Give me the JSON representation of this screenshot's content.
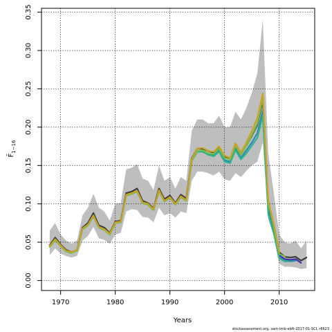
{
  "chart_data": {
    "type": "line",
    "xlabel": "Years",
    "ylabel": "F̄",
    "ylabel_sub": "1−16",
    "xlim": [
      1966.5,
      2016.5
    ],
    "ylim": [
      -0.013,
      0.355
    ],
    "xticks": [
      1970,
      1980,
      1990,
      2000,
      2010
    ],
    "yticks": [
      0.0,
      0.05,
      0.1,
      0.15,
      0.2,
      0.25,
      0.3,
      0.35
    ],
    "ytick_labels": [
      "0.00",
      "0.05",
      "0.10",
      "0.15",
      "0.20",
      "0.25",
      "0.30",
      "0.35"
    ],
    "grid": true,
    "footer": "stockassessment.org, sam-tmb-ebft-2017-01-SCI, r8623",
    "band": {
      "color": "#bebebe",
      "x": [
        1968,
        1969,
        1970,
        1971,
        1972,
        1973,
        1974,
        1975,
        1976,
        1977,
        1978,
        1979,
        1980,
        1981,
        1982,
        1983,
        1984,
        1985,
        1986,
        1987,
        1988,
        1989,
        1990,
        1991,
        1992,
        1993,
        1994,
        1995,
        1996,
        1997,
        1998,
        1999,
        2000,
        2001,
        2002,
        2003,
        2004,
        2005,
        2006,
        2007,
        2008,
        2009,
        2010,
        2011,
        2012,
        2013,
        2014,
        2015
      ],
      "upper": [
        0.065,
        0.075,
        0.06,
        0.052,
        0.048,
        0.052,
        0.085,
        0.095,
        0.113,
        0.095,
        0.09,
        0.078,
        0.1,
        0.101,
        0.145,
        0.147,
        0.152,
        0.133,
        0.13,
        0.118,
        0.15,
        0.13,
        0.135,
        0.12,
        0.135,
        0.13,
        0.195,
        0.21,
        0.21,
        0.205,
        0.205,
        0.215,
        0.2,
        0.2,
        0.22,
        0.21,
        0.225,
        0.245,
        0.27,
        0.34,
        0.165,
        0.115,
        0.06,
        0.05,
        0.048,
        0.052,
        0.042,
        0.052
      ],
      "lower": [
        0.033,
        0.042,
        0.035,
        0.032,
        0.03,
        0.032,
        0.052,
        0.058,
        0.07,
        0.055,
        0.053,
        0.048,
        0.06,
        0.062,
        0.09,
        0.093,
        0.092,
        0.083,
        0.082,
        0.076,
        0.095,
        0.085,
        0.088,
        0.082,
        0.09,
        0.088,
        0.13,
        0.142,
        0.142,
        0.14,
        0.137,
        0.142,
        0.132,
        0.13,
        0.14,
        0.135,
        0.143,
        0.15,
        0.155,
        0.18,
        0.08,
        0.058,
        0.022,
        0.018,
        0.018,
        0.017,
        0.015,
        0.016
      ]
    },
    "series": [
      {
        "color": "#3a3a3a",
        "x": [
          1968,
          1969,
          1970,
          1971,
          1972,
          1973,
          1974,
          1975,
          1976,
          1977,
          1978,
          1979,
          1980,
          1981,
          1982,
          1983,
          1984,
          1985,
          1986,
          1987,
          1988,
          1989,
          1990,
          1991,
          1992,
          1993,
          1994,
          1995,
          1996,
          1997,
          1998,
          1999,
          2000,
          2001,
          2002,
          2003,
          2004,
          2005,
          2006,
          2007,
          2008,
          2009,
          2010,
          2011,
          2012,
          2013,
          2014,
          2015
        ],
        "values": [
          0.046,
          0.056,
          0.047,
          0.04,
          0.037,
          0.04,
          0.069,
          0.075,
          0.088,
          0.072,
          0.069,
          0.062,
          0.077,
          0.078,
          0.114,
          0.116,
          0.12,
          0.104,
          0.101,
          0.094,
          0.12,
          0.106,
          0.111,
          0.101,
          0.112,
          0.107,
          0.159,
          0.172,
          0.172,
          0.169,
          0.167,
          0.174,
          0.161,
          0.159,
          0.177,
          0.165,
          0.176,
          0.189,
          0.203,
          0.235,
          0.1,
          0.072,
          0.037,
          0.031,
          0.03,
          0.031,
          0.026,
          0.03
        ]
      },
      {
        "color": "#3f2fa8",
        "x": [
          2007,
          2008,
          2009,
          2010,
          2011,
          2012,
          2013,
          2014
        ],
        "values": [
          0.232,
          0.095,
          0.069,
          0.033,
          0.028,
          0.027,
          0.028,
          0.023
        ]
      },
      {
        "color": "#2a8ab4",
        "x": [
          1968,
          1969,
          1970,
          1971,
          1972,
          1973,
          1974,
          1975,
          1976,
          1977,
          1978,
          1979,
          1980,
          1981,
          1982,
          1983,
          1984,
          1985,
          1986,
          1987,
          1988,
          1989,
          1990,
          1991,
          1992,
          1993,
          1994,
          1995,
          1996,
          1997,
          1998,
          1999,
          2000,
          2001,
          2002,
          2003,
          2004,
          2005,
          2006,
          2007,
          2008,
          2009,
          2010,
          2011,
          2012,
          2013
        ],
        "values": [
          0.044,
          0.053,
          0.045,
          0.038,
          0.036,
          0.039,
          0.067,
          0.072,
          0.084,
          0.069,
          0.066,
          0.06,
          0.075,
          0.076,
          0.111,
          0.113,
          0.116,
          0.101,
          0.099,
          0.092,
          0.117,
          0.103,
          0.108,
          0.099,
          0.109,
          0.104,
          0.156,
          0.168,
          0.168,
          0.165,
          0.163,
          0.17,
          0.157,
          0.155,
          0.172,
          0.16,
          0.17,
          0.18,
          0.192,
          0.222,
          0.09,
          0.064,
          0.03,
          0.026,
          0.025,
          0.026
        ]
      },
      {
        "color": "#2eb38a",
        "x": [
          1968,
          1969,
          1970,
          1971,
          1972,
          1973,
          1974,
          1975,
          1976,
          1977,
          1978,
          1979,
          1980,
          1981,
          1982,
          1983,
          1984,
          1985,
          1986,
          1987,
          1988,
          1989,
          1990,
          1991,
          1992,
          1993,
          1994,
          1995,
          1996,
          1997,
          1998,
          1999,
          2000,
          2001,
          2002,
          2003,
          2004,
          2005,
          2006,
          2007,
          2008,
          2009,
          2010,
          2011,
          2012
        ],
        "values": [
          0.044,
          0.053,
          0.045,
          0.038,
          0.036,
          0.039,
          0.067,
          0.072,
          0.084,
          0.069,
          0.066,
          0.06,
          0.075,
          0.076,
          0.111,
          0.113,
          0.116,
          0.101,
          0.099,
          0.092,
          0.117,
          0.103,
          0.108,
          0.099,
          0.109,
          0.104,
          0.156,
          0.168,
          0.168,
          0.164,
          0.162,
          0.168,
          0.155,
          0.153,
          0.17,
          0.158,
          0.166,
          0.176,
          0.186,
          0.215,
          0.086,
          0.062,
          0.029,
          0.025,
          0.025
        ]
      },
      {
        "color": "#78c043",
        "x": [
          1968,
          1969,
          1970,
          1971,
          1972,
          1973,
          1974,
          1975,
          1976,
          1977,
          1978,
          1979,
          1980,
          1981,
          1982,
          1983,
          1984,
          1985,
          1986,
          1987,
          1988,
          1989,
          1990,
          1991,
          1992,
          1993,
          1994,
          1995,
          1996,
          1997,
          1998,
          1999,
          2000,
          2001,
          2002,
          2003,
          2004,
          2005,
          2006,
          2007,
          2008,
          2009,
          2010,
          2011
        ],
        "values": [
          0.044,
          0.053,
          0.045,
          0.038,
          0.036,
          0.039,
          0.067,
          0.072,
          0.084,
          0.069,
          0.066,
          0.06,
          0.075,
          0.076,
          0.111,
          0.113,
          0.116,
          0.101,
          0.099,
          0.092,
          0.117,
          0.103,
          0.108,
          0.099,
          0.109,
          0.104,
          0.156,
          0.169,
          0.17,
          0.166,
          0.165,
          0.172,
          0.16,
          0.158,
          0.176,
          0.164,
          0.176,
          0.19,
          0.205,
          0.238,
          0.1,
          0.071,
          0.035,
          0.031
        ]
      },
      {
        "color": "#c9a227",
        "x": [
          1968,
          1969,
          1970,
          1971,
          1972,
          1973,
          1974,
          1975,
          1976,
          1977,
          1978,
          1979,
          1980,
          1981,
          1982,
          1983,
          1984,
          1985,
          1986,
          1987,
          1988,
          1989,
          1990,
          1991,
          1992,
          1993,
          1994,
          1995,
          1996,
          1997,
          1998,
          1999,
          2000,
          2001,
          2002,
          2003,
          2004,
          2005,
          2006,
          2007,
          2008,
          2009,
          2010
        ],
        "values": [
          0.045,
          0.054,
          0.046,
          0.039,
          0.037,
          0.04,
          0.068,
          0.073,
          0.085,
          0.07,
          0.067,
          0.061,
          0.076,
          0.077,
          0.112,
          0.114,
          0.117,
          0.102,
          0.1,
          0.093,
          0.118,
          0.104,
          0.109,
          0.1,
          0.11,
          0.105,
          0.158,
          0.172,
          0.173,
          0.169,
          0.168,
          0.175,
          0.163,
          0.16,
          0.179,
          0.167,
          0.18,
          0.195,
          0.212,
          0.244,
          0.104,
          0.074,
          0.037
        ]
      }
    ]
  }
}
